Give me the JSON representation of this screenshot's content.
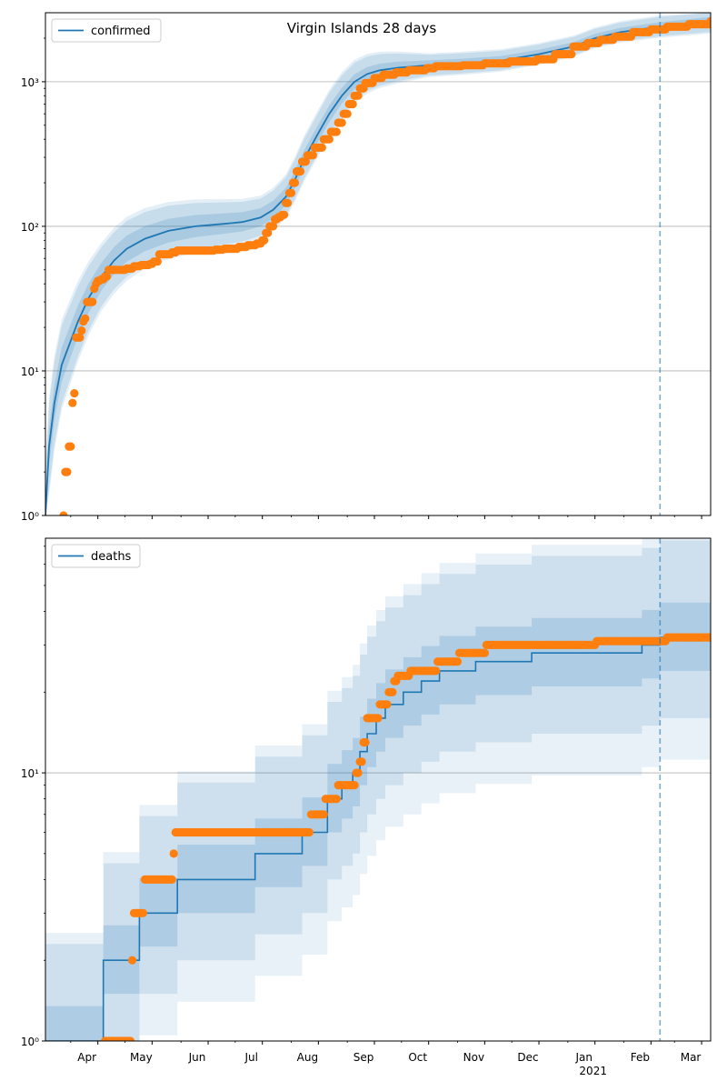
{
  "title": "Virgin Islands 28 days",
  "colors": {
    "model": "#1f77b4",
    "observed": "#ff7f0e",
    "band": "#1f77b4",
    "grid": "#b0b0b0",
    "vline": "#1f77b4"
  },
  "x_ticks": [
    {
      "label": "Apr",
      "date": "2020-04-01"
    },
    {
      "label": "May",
      "date": "2020-05-01"
    },
    {
      "label": "Jun",
      "date": "2020-06-01"
    },
    {
      "label": "Jul",
      "date": "2020-07-01"
    },
    {
      "label": "Aug",
      "date": "2020-08-01"
    },
    {
      "label": "Sep",
      "date": "2020-09-01"
    },
    {
      "label": "Oct",
      "date": "2020-10-01"
    },
    {
      "label": "Nov",
      "date": "2020-11-01"
    },
    {
      "label": "Dec",
      "date": "2020-12-01"
    },
    {
      "label": "Jan",
      "date": "2021-01-01"
    },
    {
      "label": "Feb",
      "date": "2021-02-01"
    },
    {
      "label": "Mar",
      "date": "2021-03-01"
    }
  ],
  "x_year_label": "2021",
  "chart_data": [
    {
      "type": "line",
      "scale": "log",
      "legend": "confirmed",
      "legend_position": "top-left",
      "grid": true,
      "x_range": [
        "2020-03-03",
        "2021-03-06"
      ],
      "y_range": [
        1,
        3000
      ],
      "y_ticks": [
        {
          "value": 1,
          "label": "10⁰"
        },
        {
          "value": 10,
          "label": "10¹"
        },
        {
          "value": 100,
          "label": "10²"
        },
        {
          "value": 1000,
          "label": "10³"
        }
      ],
      "forecast_start": "2021-02-06",
      "model": [
        [
          "2020-03-03",
          1
        ],
        [
          "2020-03-05",
          3
        ],
        [
          "2020-03-08",
          6
        ],
        [
          "2020-03-12",
          11
        ],
        [
          "2020-03-16",
          15
        ],
        [
          "2020-03-21",
          22
        ],
        [
          "2020-03-27",
          32
        ],
        [
          "2020-04-03",
          45
        ],
        [
          "2020-04-10",
          58
        ],
        [
          "2020-04-17",
          70
        ],
        [
          "2020-04-27",
          82
        ],
        [
          "2020-05-10",
          93
        ],
        [
          "2020-05-25",
          100
        ],
        [
          "2020-06-10",
          104
        ],
        [
          "2020-06-20",
          107
        ],
        [
          "2020-06-30",
          115
        ],
        [
          "2020-07-07",
          130
        ],
        [
          "2020-07-14",
          160
        ],
        [
          "2020-07-19",
          210
        ],
        [
          "2020-07-24",
          290
        ],
        [
          "2020-07-31",
          420
        ],
        [
          "2020-08-07",
          600
        ],
        [
          "2020-08-14",
          800
        ],
        [
          "2020-08-21",
          1000
        ],
        [
          "2020-08-28",
          1130
        ],
        [
          "2020-09-04",
          1200
        ],
        [
          "2020-09-14",
          1250
        ],
        [
          "2020-10-01",
          1300
        ],
        [
          "2020-10-20",
          1340
        ],
        [
          "2020-11-10",
          1400
        ],
        [
          "2020-12-01",
          1550
        ],
        [
          "2020-12-20",
          1750
        ],
        [
          "2021-01-01",
          2000
        ],
        [
          "2021-01-15",
          2200
        ],
        [
          "2021-02-06",
          2400
        ],
        [
          "2021-03-06",
          2600
        ]
      ],
      "band_inner": [
        [
          "2020-03-03",
          0.75,
          1.35
        ],
        [
          "2020-04-01",
          0.8,
          1.25
        ],
        [
          "2020-07-01",
          0.87,
          1.16
        ],
        [
          "2020-08-10",
          0.88,
          1.14
        ],
        [
          "2020-10-01",
          0.93,
          1.08
        ],
        [
          "2021-01-01",
          0.94,
          1.07
        ],
        [
          "2021-03-06",
          0.93,
          1.08
        ]
      ],
      "band_outer": [
        [
          "2020-03-03",
          0.5,
          2.0
        ],
        [
          "2020-04-01",
          0.62,
          1.6
        ],
        [
          "2020-07-01",
          0.75,
          1.35
        ],
        [
          "2020-08-10",
          0.72,
          1.4
        ],
        [
          "2020-10-01",
          0.85,
          1.18
        ],
        [
          "2021-01-01",
          0.87,
          1.16
        ],
        [
          "2021-03-06",
          0.85,
          1.18
        ]
      ],
      "observed_steps": [
        [
          "2020-03-13",
          1
        ],
        [
          "2020-03-14",
          2
        ],
        [
          "2020-03-16",
          3
        ],
        [
          "2020-03-18",
          6
        ],
        [
          "2020-03-19",
          7
        ],
        [
          "2020-03-20",
          17
        ],
        [
          "2020-03-23",
          19
        ],
        [
          "2020-03-24",
          22
        ],
        [
          "2020-03-25",
          23
        ],
        [
          "2020-03-26",
          30
        ],
        [
          "2020-03-30",
          37
        ],
        [
          "2020-03-31",
          40
        ],
        [
          "2020-04-01",
          42
        ],
        [
          "2020-04-03",
          43
        ],
        [
          "2020-04-05",
          45
        ],
        [
          "2020-04-07",
          50
        ],
        [
          "2020-04-17",
          51
        ],
        [
          "2020-04-21",
          53
        ],
        [
          "2020-04-25",
          54
        ],
        [
          "2020-04-30",
          55
        ],
        [
          "2020-05-02",
          57
        ],
        [
          "2020-05-05",
          64
        ],
        [
          "2020-05-12",
          66
        ],
        [
          "2020-05-15",
          68
        ],
        [
          "2020-06-05",
          69
        ],
        [
          "2020-06-10",
          70
        ],
        [
          "2020-06-18",
          72
        ],
        [
          "2020-06-23",
          74
        ],
        [
          "2020-06-28",
          76
        ],
        [
          "2020-07-01",
          80
        ],
        [
          "2020-07-03",
          90
        ],
        [
          "2020-07-05",
          100
        ],
        [
          "2020-07-08",
          112
        ],
        [
          "2020-07-10",
          116
        ],
        [
          "2020-07-12",
          120
        ],
        [
          "2020-07-14",
          145
        ],
        [
          "2020-07-16",
          170
        ],
        [
          "2020-07-18",
          200
        ],
        [
          "2020-07-20",
          240
        ],
        [
          "2020-07-23",
          280
        ],
        [
          "2020-07-26",
          310
        ],
        [
          "2020-07-30",
          350
        ],
        [
          "2020-08-04",
          400
        ],
        [
          "2020-08-08",
          450
        ],
        [
          "2020-08-12",
          520
        ],
        [
          "2020-08-15",
          600
        ],
        [
          "2020-08-18",
          700
        ],
        [
          "2020-08-21",
          800
        ],
        [
          "2020-08-24",
          900
        ],
        [
          "2020-08-27",
          980
        ],
        [
          "2020-09-01",
          1060
        ],
        [
          "2020-09-06",
          1120
        ],
        [
          "2020-09-13",
          1160
        ],
        [
          "2020-09-20",
          1200
        ],
        [
          "2020-09-30",
          1240
        ],
        [
          "2020-10-05",
          1280
        ],
        [
          "2020-10-20",
          1300
        ],
        [
          "2020-11-01",
          1340
        ],
        [
          "2020-11-15",
          1380
        ],
        [
          "2020-11-30",
          1430
        ],
        [
          "2020-12-10",
          1550
        ],
        [
          "2020-12-20",
          1750
        ],
        [
          "2020-12-28",
          1850
        ],
        [
          "2021-01-04",
          1950
        ],
        [
          "2021-01-12",
          2050
        ],
        [
          "2021-01-22",
          2200
        ],
        [
          "2021-02-01",
          2300
        ],
        [
          "2021-02-10",
          2400
        ],
        [
          "2021-02-22",
          2500
        ],
        [
          "2021-03-06",
          2620
        ]
      ]
    },
    {
      "type": "line",
      "scale": "log",
      "legend": "deaths",
      "legend_position": "top-left",
      "grid": true,
      "x_range": [
        "2020-03-03",
        "2021-03-06"
      ],
      "y_range": [
        1,
        75
      ],
      "y_ticks": [
        {
          "value": 1,
          "label": "10⁰"
        },
        {
          "value": 10,
          "label": "10¹"
        }
      ],
      "forecast_start": "2021-02-06",
      "model_steps": [
        [
          "2020-03-03",
          1
        ],
        [
          "2020-04-04",
          2
        ],
        [
          "2020-04-24",
          3
        ],
        [
          "2020-05-15",
          4
        ],
        [
          "2020-06-27",
          5
        ],
        [
          "2020-07-23",
          6
        ],
        [
          "2020-08-06",
          8
        ],
        [
          "2020-08-14",
          9
        ],
        [
          "2020-08-20",
          10
        ],
        [
          "2020-08-24",
          12
        ],
        [
          "2020-08-28",
          14
        ],
        [
          "2020-09-02",
          16
        ],
        [
          "2020-09-07",
          18
        ],
        [
          "2020-09-17",
          20
        ],
        [
          "2020-09-27",
          22
        ],
        [
          "2020-10-07",
          24
        ],
        [
          "2020-10-27",
          26
        ],
        [
          "2020-11-27",
          28
        ],
        [
          "2021-01-27",
          30
        ],
        [
          "2021-02-06",
          32
        ],
        [
          "2021-03-06",
          32
        ]
      ],
      "band_lo_mult": 0.75,
      "band_hi_mult": 1.35,
      "band_outer_lo_mult": 0.5,
      "band_outer_hi_mult": 2.3,
      "observed_steps": [
        [
          "2020-04-05",
          1
        ],
        [
          "2020-04-20",
          2
        ],
        [
          "2020-04-21",
          3
        ],
        [
          "2020-04-27",
          4
        ],
        [
          "2020-05-13",
          5
        ],
        [
          "2020-05-14",
          6
        ],
        [
          "2020-07-28",
          7
        ],
        [
          "2020-08-05",
          8
        ],
        [
          "2020-08-12",
          9
        ],
        [
          "2020-08-22",
          10
        ],
        [
          "2020-08-24",
          11
        ],
        [
          "2020-08-26",
          13
        ],
        [
          "2020-08-28",
          16
        ],
        [
          "2020-09-04",
          18
        ],
        [
          "2020-09-09",
          20
        ],
        [
          "2020-09-12",
          22
        ],
        [
          "2020-09-14",
          23
        ],
        [
          "2020-09-21",
          24
        ],
        [
          "2020-10-06",
          26
        ],
        [
          "2020-10-18",
          28
        ],
        [
          "2020-11-02",
          30
        ],
        [
          "2021-01-02",
          31
        ],
        [
          "2021-02-10",
          32
        ],
        [
          "2021-03-06",
          32
        ]
      ]
    }
  ]
}
